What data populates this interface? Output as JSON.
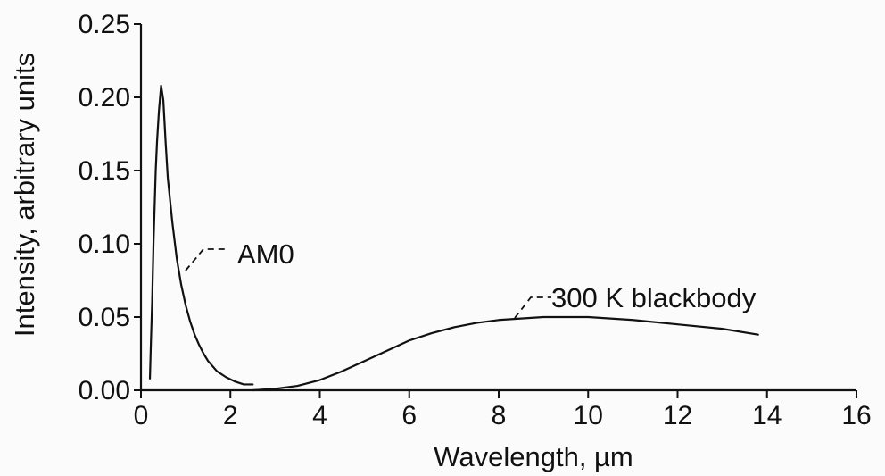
{
  "chart_data": {
    "type": "line",
    "xlabel": "Wavelength, µm",
    "ylabel": "Intensity, arbitrary units",
    "xlim": [
      0,
      16
    ],
    "ylim": [
      0,
      0.25
    ],
    "x_ticks": [
      0,
      2,
      4,
      6,
      8,
      10,
      12,
      14,
      16
    ],
    "x_tick_labels": [
      "0",
      "2",
      "4",
      "6",
      "8",
      "10",
      "12",
      "14",
      "16"
    ],
    "y_ticks": [
      0.0,
      0.05,
      0.1,
      0.15,
      0.2,
      0.25
    ],
    "y_tick_labels": [
      "0.00",
      "0.05",
      "0.10",
      "0.15",
      "0.20",
      "0.25"
    ],
    "grid": false,
    "series": [
      {
        "name": "AM0",
        "color": "#111111",
        "x": [
          0.2,
          0.22,
          0.25,
          0.28,
          0.3,
          0.33,
          0.36,
          0.4,
          0.45,
          0.5,
          0.55,
          0.6,
          0.7,
          0.8,
          0.9,
          1.0,
          1.1,
          1.2,
          1.3,
          1.4,
          1.5,
          1.7,
          1.9,
          2.1,
          2.3,
          2.5
        ],
        "y": [
          0.008,
          0.03,
          0.06,
          0.1,
          0.12,
          0.15,
          0.17,
          0.19,
          0.208,
          0.198,
          0.17,
          0.145,
          0.115,
          0.09,
          0.072,
          0.058,
          0.047,
          0.038,
          0.031,
          0.025,
          0.02,
          0.013,
          0.009,
          0.006,
          0.004,
          0.004
        ]
      },
      {
        "name": "300 K blackbody",
        "color": "#111111",
        "x": [
          2.5,
          3.0,
          3.5,
          4.0,
          4.5,
          5.0,
          5.5,
          6.0,
          6.5,
          7.0,
          7.5,
          8.0,
          8.5,
          9.0,
          9.5,
          10.0,
          11.0,
          12.0,
          13.0,
          13.8
        ],
        "y": [
          0.0,
          0.001,
          0.003,
          0.007,
          0.013,
          0.02,
          0.027,
          0.034,
          0.039,
          0.043,
          0.046,
          0.048,
          0.049,
          0.05,
          0.05,
          0.05,
          0.048,
          0.045,
          0.042,
          0.038
        ]
      }
    ],
    "annotations": [
      {
        "text": "AM0",
        "series": "AM0"
      },
      {
        "text": "300 K blackbody",
        "series": "300 K blackbody"
      }
    ]
  }
}
